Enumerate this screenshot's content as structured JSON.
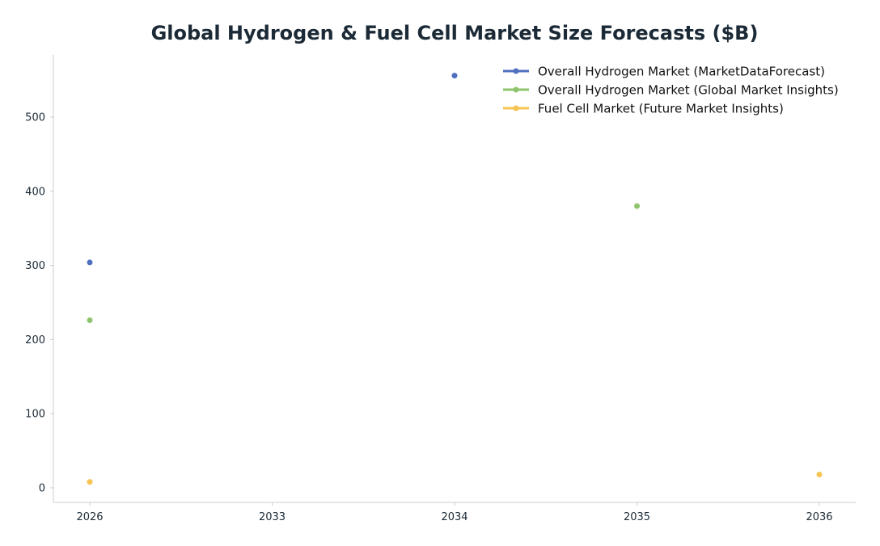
{
  "chart_data": {
    "type": "scatter",
    "title": "Global Hydrogen & Fuel Cell Market Size Forecasts ($B)",
    "xlabel": "",
    "ylabel": "",
    "categories": [
      "2026",
      "2033",
      "2034",
      "2035",
      "2036"
    ],
    "yticks": [
      0,
      100,
      200,
      300,
      400,
      500
    ],
    "ylim": [
      -20,
      585
    ],
    "grid": false,
    "legend_position": "top-right",
    "series": [
      {
        "name": "Overall Hydrogen Market (MarketDataForecast)",
        "color": "#4f6fbf",
        "points": [
          {
            "x": "2026",
            "y": 304
          },
          {
            "x": "2034",
            "y": 556
          }
        ]
      },
      {
        "name": "Overall Hydrogen Market (Global Market Insights)",
        "color": "#8fc46e",
        "points": [
          {
            "x": "2026",
            "y": 226
          },
          {
            "x": "2035",
            "y": 380
          }
        ]
      },
      {
        "name": "Fuel Cell Market (Future Market Insights)",
        "color": "#f5c453",
        "points": [
          {
            "x": "2026",
            "y": 8
          },
          {
            "x": "2036",
            "y": 18
          }
        ]
      }
    ]
  }
}
